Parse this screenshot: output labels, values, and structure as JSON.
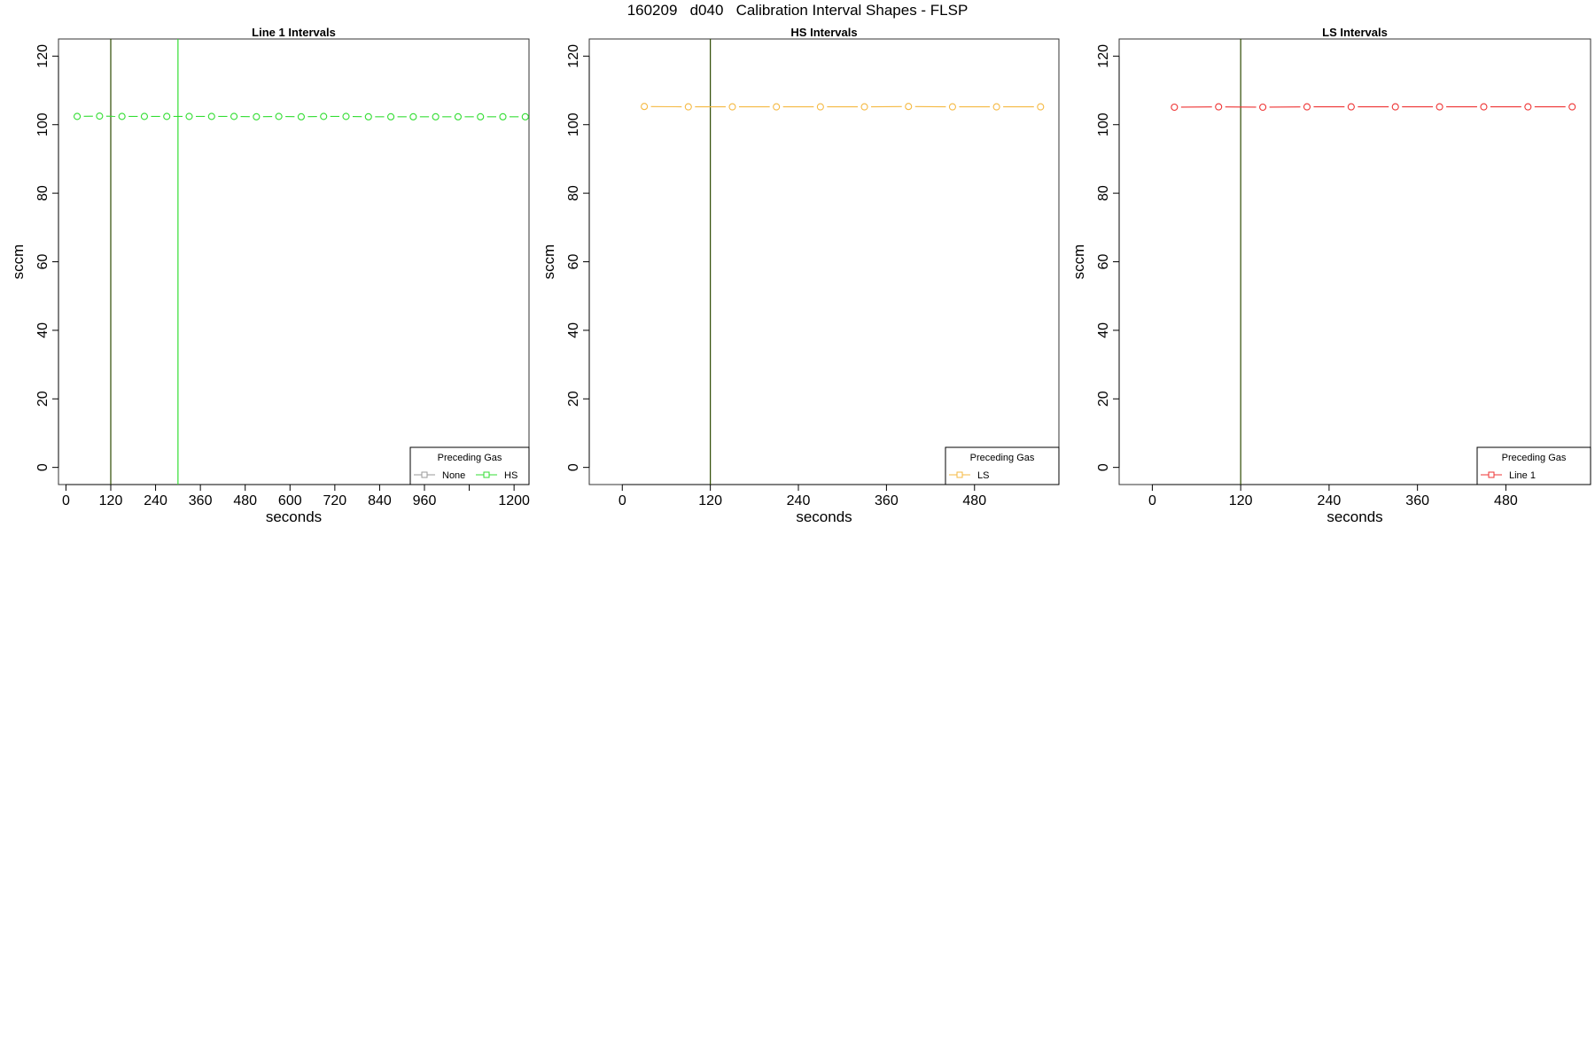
{
  "figure": {
    "title": "160209   d040   Calibration Interval Shapes - FLSP"
  },
  "chart_data": [
    {
      "type": "line",
      "title": "Line 1 Intervals",
      "xlabel": "seconds",
      "ylabel": "sccm",
      "xlim": [
        -20,
        1240
      ],
      "ylim": [
        -5,
        125
      ],
      "xticks": [
        0,
        120,
        240,
        360,
        480,
        600,
        720,
        840,
        960,
        1080,
        1200
      ],
      "xtick_labels": [
        "0",
        "120",
        "240",
        "360",
        "480",
        "600",
        "720",
        "840",
        "960",
        "",
        "1200"
      ],
      "yticks": [
        0,
        20,
        40,
        60,
        80,
        100,
        120
      ],
      "ytick_labels": [
        "0",
        "20",
        "40",
        "60",
        "80",
        "100",
        "120"
      ],
      "vlines": [
        {
          "x": 120,
          "color": "#2d4a00"
        },
        {
          "x": 300,
          "color": "#33dd33"
        }
      ],
      "series": [
        {
          "name": "HS",
          "color": "#33dd33",
          "x": [
            30,
            90,
            150,
            210,
            270,
            330,
            390,
            450,
            510,
            570,
            630,
            690,
            750,
            810,
            870,
            930,
            990,
            1050,
            1110,
            1170,
            1230
          ],
          "y": [
            102.4,
            102.5,
            102.4,
            102.4,
            102.4,
            102.4,
            102.4,
            102.4,
            102.3,
            102.4,
            102.3,
            102.4,
            102.4,
            102.3,
            102.3,
            102.3,
            102.3,
            102.3,
            102.3,
            102.3,
            102.3
          ]
        }
      ],
      "legend": {
        "title": "Preceding Gas",
        "placement": "bottom-right",
        "entries": [
          {
            "label": "None",
            "color": "#999999"
          },
          {
            "label": "HS",
            "color": "#33dd33"
          }
        ]
      },
      "grid": false
    },
    {
      "type": "line",
      "title": "HS Intervals",
      "xlabel": "seconds",
      "ylabel": "sccm",
      "xlim": [
        -45,
        595
      ],
      "ylim": [
        -5,
        125
      ],
      "xticks": [
        0,
        120,
        240,
        360,
        480
      ],
      "xtick_labels": [
        "0",
        "120",
        "240",
        "360",
        "480"
      ],
      "yticks": [
        0,
        20,
        40,
        60,
        80,
        100,
        120
      ],
      "ytick_labels": [
        "0",
        "20",
        "40",
        "60",
        "80",
        "100",
        "120"
      ],
      "vlines": [
        {
          "x": 120,
          "color": "#2d4a00"
        }
      ],
      "series": [
        {
          "name": "LS",
          "color": "#f5b942",
          "x": [
            30,
            90,
            150,
            210,
            270,
            330,
            390,
            450,
            510,
            570
          ],
          "y": [
            105.3,
            105.2,
            105.2,
            105.2,
            105.2,
            105.2,
            105.3,
            105.2,
            105.2,
            105.2
          ]
        }
      ],
      "legend": {
        "title": "Preceding Gas",
        "placement": "bottom-right",
        "entries": [
          {
            "label": "LS",
            "color": "#f5b942"
          }
        ]
      },
      "grid": false
    },
    {
      "type": "line",
      "title": "LS Intervals",
      "xlabel": "seconds",
      "ylabel": "sccm",
      "xlim": [
        -45,
        595
      ],
      "ylim": [
        -5,
        125
      ],
      "xticks": [
        0,
        120,
        240,
        360,
        480
      ],
      "xtick_labels": [
        "0",
        "120",
        "240",
        "360",
        "480"
      ],
      "yticks": [
        0,
        20,
        40,
        60,
        80,
        100,
        120
      ],
      "ytick_labels": [
        "0",
        "20",
        "40",
        "60",
        "80",
        "100",
        "120"
      ],
      "vlines": [
        {
          "x": 120,
          "color": "#2d4a00"
        }
      ],
      "series": [
        {
          "name": "Line 1",
          "color": "#ee3333",
          "x": [
            30,
            90,
            150,
            210,
            270,
            330,
            390,
            450,
            510,
            570
          ],
          "y": [
            105.1,
            105.2,
            105.1,
            105.2,
            105.2,
            105.2,
            105.2,
            105.2,
            105.2,
            105.2
          ]
        }
      ],
      "legend": {
        "title": "Preceding Gas",
        "placement": "bottom-right",
        "entries": [
          {
            "label": "Line 1",
            "color": "#ee3333"
          }
        ]
      },
      "grid": false
    }
  ]
}
